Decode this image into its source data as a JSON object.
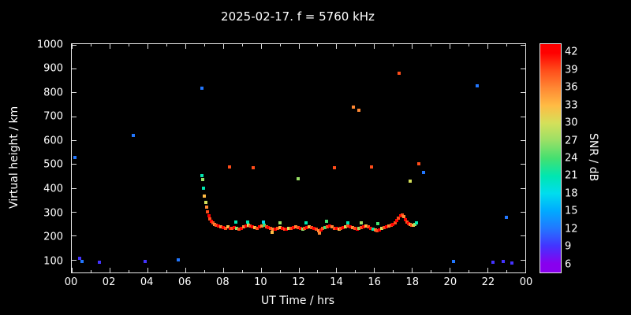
{
  "chart_data": {
    "type": "scatter",
    "title": "2025-02-17. f = 5760 kHz",
    "xlabel": "UT Time / hrs",
    "ylabel": "Virtual height / km",
    "cblabel": "SNR / dB",
    "xlim": [
      0,
      24
    ],
    "ylim": [
      50,
      1005
    ],
    "x_ticks": [
      {
        "v": 0,
        "label": "00"
      },
      {
        "v": 2,
        "label": "02"
      },
      {
        "v": 4,
        "label": "04"
      },
      {
        "v": 6,
        "label": "06"
      },
      {
        "v": 8,
        "label": "08"
      },
      {
        "v": 10,
        "label": "10"
      },
      {
        "v": 12,
        "label": "12"
      },
      {
        "v": 14,
        "label": "14"
      },
      {
        "v": 16,
        "label": "16"
      },
      {
        "v": 18,
        "label": "18"
      },
      {
        "v": 20,
        "label": "20"
      },
      {
        "v": 22,
        "label": "22"
      },
      {
        "v": 24,
        "label": "00"
      }
    ],
    "x_minor_ticks": [
      1,
      3,
      5,
      7,
      9,
      11,
      13,
      15,
      17,
      19,
      21,
      23
    ],
    "y_ticks": [
      100,
      200,
      300,
      400,
      500,
      600,
      700,
      800,
      900,
      1000
    ],
    "colorbar": {
      "min": 4.5,
      "max": 43.5,
      "ticks": [
        42,
        39,
        36,
        33,
        30,
        27,
        24,
        21,
        18,
        15,
        12,
        9,
        6
      ],
      "stops": [
        {
          "v": 6,
          "c": "#8800ee"
        },
        {
          "v": 9,
          "c": "#4433ff"
        },
        {
          "v": 12,
          "c": "#2277ff"
        },
        {
          "v": 15,
          "c": "#00aaff"
        },
        {
          "v": 18,
          "c": "#00ddee"
        },
        {
          "v": 21,
          "c": "#00e6b0"
        },
        {
          "v": 24,
          "c": "#44e070"
        },
        {
          "v": 27,
          "c": "#99e066"
        },
        {
          "v": 30,
          "c": "#d4e05a"
        },
        {
          "v": 33,
          "c": "#ffbb44"
        },
        {
          "v": 36,
          "c": "#ff8833"
        },
        {
          "v": 39,
          "c": "#ff4d1a"
        },
        {
          "v": 42,
          "c": "#ff0000"
        }
      ]
    },
    "points": [
      [
        0.18,
        532,
        12
      ],
      [
        0.42,
        108,
        9
      ],
      [
        0.55,
        96,
        12
      ],
      [
        1.45,
        94,
        9
      ],
      [
        3.25,
        622,
        12
      ],
      [
        3.9,
        96,
        9
      ],
      [
        5.62,
        102,
        12
      ],
      [
        6.9,
        822,
        12
      ],
      [
        6.89,
        455,
        21
      ],
      [
        6.93,
        437,
        27
      ],
      [
        6.98,
        402,
        21
      ],
      [
        7.03,
        368,
        33
      ],
      [
        7.08,
        344,
        30
      ],
      [
        7.13,
        322,
        36
      ],
      [
        7.18,
        305,
        39
      ],
      [
        7.25,
        288,
        42
      ],
      [
        7.32,
        275,
        39
      ],
      [
        7.4,
        264,
        42
      ],
      [
        7.48,
        256,
        39
      ],
      [
        7.56,
        250,
        36
      ],
      [
        7.65,
        248,
        39
      ],
      [
        7.77,
        243,
        42
      ],
      [
        7.89,
        240,
        36
      ],
      [
        8.01,
        238,
        42
      ],
      [
        8.13,
        236,
        39
      ],
      [
        8.25,
        240,
        33
      ],
      [
        8.37,
        235,
        42
      ],
      [
        8.49,
        233,
        39
      ],
      [
        8.61,
        238,
        42
      ],
      [
        8.7,
        262,
        21
      ],
      [
        8.73,
        236,
        27
      ],
      [
        8.85,
        232,
        39
      ],
      [
        8.97,
        235,
        42
      ],
      [
        9.09,
        240,
        36
      ],
      [
        9.21,
        244,
        42
      ],
      [
        9.3,
        260,
        21
      ],
      [
        9.33,
        247,
        30
      ],
      [
        9.45,
        245,
        39
      ],
      [
        9.57,
        242,
        42
      ],
      [
        9.69,
        238,
        33
      ],
      [
        9.81,
        236,
        39
      ],
      [
        9.93,
        240,
        42
      ],
      [
        10.05,
        244,
        36
      ],
      [
        10.15,
        262,
        18
      ],
      [
        10.17,
        246,
        24
      ],
      [
        10.29,
        242,
        39
      ],
      [
        10.41,
        238,
        42
      ],
      [
        10.53,
        234,
        39
      ],
      [
        10.6,
        218,
        33
      ],
      [
        10.65,
        230,
        36
      ],
      [
        10.77,
        232,
        42
      ],
      [
        10.89,
        236,
        39
      ],
      [
        11.0,
        256,
        27
      ],
      [
        11.01,
        238,
        33
      ],
      [
        11.13,
        235,
        42
      ],
      [
        11.25,
        232,
        39
      ],
      [
        11.37,
        230,
        42
      ],
      [
        11.49,
        233,
        30
      ],
      [
        11.61,
        236,
        39
      ],
      [
        11.73,
        239,
        42
      ],
      [
        11.85,
        242,
        36
      ],
      [
        11.97,
        238,
        39
      ],
      [
        12.09,
        234,
        42
      ],
      [
        12.21,
        231,
        27
      ],
      [
        12.33,
        234,
        39
      ],
      [
        12.4,
        259,
        21
      ],
      [
        12.45,
        238,
        42
      ],
      [
        12.57,
        241,
        33
      ],
      [
        12.69,
        238,
        39
      ],
      [
        12.81,
        235,
        42
      ],
      [
        12.93,
        230,
        39
      ],
      [
        13.05,
        226,
        36
      ],
      [
        13.1,
        216,
        36
      ],
      [
        13.17,
        229,
        42
      ],
      [
        13.29,
        233,
        39
      ],
      [
        13.41,
        237,
        24
      ],
      [
        13.5,
        263,
        24
      ],
      [
        13.53,
        241,
        39
      ],
      [
        13.65,
        244,
        42
      ],
      [
        13.77,
        240,
        36
      ],
      [
        13.89,
        236,
        39
      ],
      [
        14.01,
        233,
        42
      ],
      [
        14.13,
        230,
        33
      ],
      [
        14.25,
        234,
        39
      ],
      [
        14.37,
        238,
        42
      ],
      [
        14.49,
        242,
        30
      ],
      [
        14.6,
        256,
        21
      ],
      [
        14.61,
        245,
        39
      ],
      [
        14.73,
        241,
        42
      ],
      [
        14.85,
        237,
        36
      ],
      [
        14.97,
        233,
        39
      ],
      [
        15.09,
        230,
        42
      ],
      [
        15.21,
        233,
        27
      ],
      [
        15.3,
        259,
        27
      ],
      [
        15.33,
        237,
        39
      ],
      [
        15.45,
        241,
        42
      ],
      [
        15.57,
        244,
        33
      ],
      [
        15.69,
        240,
        39
      ],
      [
        15.81,
        236,
        42
      ],
      [
        15.93,
        232,
        21
      ],
      [
        16.05,
        228,
        36
      ],
      [
        16.17,
        225,
        39
      ],
      [
        16.2,
        253,
        24
      ],
      [
        16.29,
        229,
        42
      ],
      [
        16.41,
        233,
        30
      ],
      [
        16.53,
        237,
        39
      ],
      [
        16.65,
        241,
        42
      ],
      [
        16.77,
        244,
        36
      ],
      [
        16.89,
        248,
        39
      ],
      [
        17.0,
        252,
        42
      ],
      [
        17.1,
        258,
        39
      ],
      [
        17.2,
        266,
        42
      ],
      [
        17.3,
        276,
        39
      ],
      [
        17.4,
        286,
        42
      ],
      [
        17.5,
        292,
        39
      ],
      [
        17.58,
        284,
        36
      ],
      [
        17.66,
        272,
        42
      ],
      [
        17.74,
        262,
        39
      ],
      [
        17.82,
        255,
        42
      ],
      [
        17.9,
        250,
        36
      ],
      [
        17.9,
        432,
        30
      ],
      [
        17.98,
        246,
        39
      ],
      [
        18.06,
        248,
        33
      ],
      [
        18.14,
        252,
        27
      ],
      [
        18.22,
        256,
        21
      ],
      [
        8.35,
        490,
        39
      ],
      [
        9.62,
        488,
        39
      ],
      [
        11.98,
        442,
        27
      ],
      [
        13.9,
        488,
        39
      ],
      [
        14.88,
        742,
        36
      ],
      [
        15.18,
        728,
        36
      ],
      [
        15.85,
        490,
        39
      ],
      [
        17.32,
        882,
        39
      ],
      [
        18.35,
        505,
        39
      ],
      [
        18.6,
        468,
        12
      ],
      [
        20.2,
        96,
        12
      ],
      [
        21.45,
        832,
        12
      ],
      [
        22.3,
        92,
        9
      ],
      [
        22.85,
        96,
        9
      ],
      [
        23.0,
        282,
        12
      ],
      [
        23.3,
        90,
        9
      ]
    ]
  }
}
